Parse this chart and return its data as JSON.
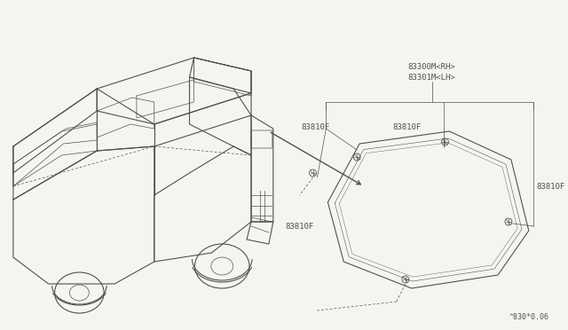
{
  "bg_color": "#f5f5f0",
  "line_color": "#505050",
  "fig_width": 6.4,
  "fig_height": 3.72,
  "dpi": 100,
  "label_83300": "83300M<RH>",
  "label_83301": "83301M<LH>",
  "label_83810F_1": "83810F",
  "label_83810F_2": "83810F",
  "label_83810F_3": "83810F",
  "label_83810F_4": "83810F",
  "label_footer": "^830*0.06",
  "car_color": "#d8d8d8",
  "glass_color": "#e8e8e8"
}
